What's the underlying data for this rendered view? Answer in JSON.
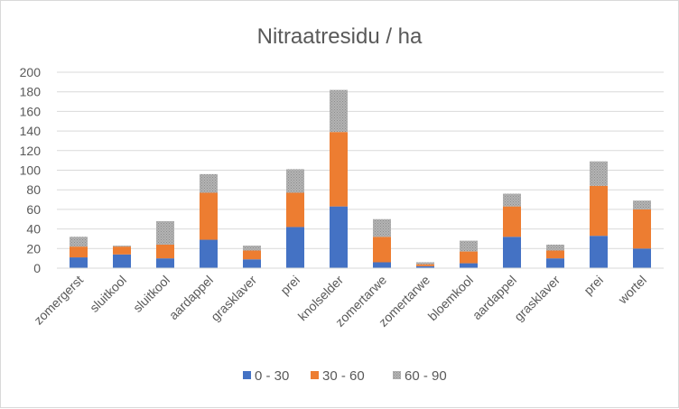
{
  "chart_data": {
    "type": "bar",
    "stacked": true,
    "title": "Nitraatresidu / ha",
    "xlabel": "",
    "ylabel": "",
    "ylim": [
      0,
      200
    ],
    "yticks": [
      0,
      20,
      40,
      60,
      80,
      100,
      120,
      140,
      160,
      180,
      200
    ],
    "grid": true,
    "legend_position": "bottom",
    "categories": [
      "zomergerst",
      "sluitkool",
      "sluitkool",
      "aardappel",
      "grasklaver",
      "prei",
      "knolselder",
      "zomertarwe",
      "zomertarwe",
      "bloemkool",
      "aardappel",
      "grasklaver",
      "prei",
      "wortel"
    ],
    "series": [
      {
        "name": "0 - 30",
        "color": "#4472c4",
        "pattern": "solid",
        "values": [
          11,
          14,
          10,
          29,
          9,
          42,
          63,
          6,
          2,
          5,
          32,
          10,
          33,
          20
        ]
      },
      {
        "name": "30 - 60",
        "color": "#ed7d31",
        "pattern": "solid",
        "values": [
          11,
          8,
          14,
          48,
          9,
          35,
          76,
          26,
          2,
          12,
          31,
          8,
          51,
          40
        ]
      },
      {
        "name": "60 - 90",
        "color": "#a5a5a5",
        "pattern": "dotted",
        "values": [
          10,
          1,
          24,
          19,
          5,
          24,
          43,
          18,
          2,
          11,
          13,
          6,
          25,
          9
        ]
      }
    ]
  }
}
